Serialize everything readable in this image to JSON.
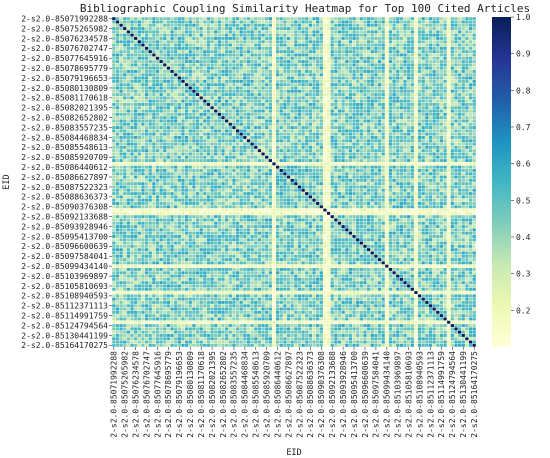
{
  "chart_data": {
    "type": "heatmap",
    "title": "Bibliographic Coupling Similarity Heatmap for Top 100 Cited Articles",
    "xlabel": "EID",
    "ylabel": "EID",
    "n": 100,
    "tick_step": 3,
    "tick_labels": [
      "2-s2.0-85071992288",
      "2-s2.0-85075265982",
      "2-s2.0-85076234578",
      "2-s2.0-85076702747",
      "2-s2.0-85077645916",
      "2-s2.0-85078695779",
      "2-s2.0-85079196653",
      "2-s2.0-85080130809",
      "2-s2.0-85081170618",
      "2-s2.0-85082021395",
      "2-s2.0-85082652802",
      "2-s2.0-85083557235",
      "2-s2.0-85084468834",
      "2-s2.0-85085548613",
      "2-s2.0-85085920709",
      "2-s2.0-85086440612",
      "2-s2.0-85086627897",
      "2-s2.0-85087522323",
      "2-s2.0-85088636373",
      "2-s2.0-85090376308",
      "2-s2.0-85092133688",
      "2-s2.0-85093928946",
      "2-s2.0-85095413700",
      "2-s2.0-85096600639",
      "2-s2.0-85097584041",
      "2-s2.0-85099434140",
      "2-s2.0-85103969897",
      "2-s2.0-85105810693",
      "2-s2.0-85108940593",
      "2-s2.0-85112371113",
      "2-s2.0-85114991759",
      "2-s2.0-85124794564",
      "2-s2.0-85130441199",
      "2-s2.0-85164170275"
    ],
    "value_range": [
      0.1,
      1.0
    ],
    "diagonal_value": 1.0,
    "typical_off_diagonal_range": [
      0.3,
      0.6
    ],
    "light_rows_cols": [
      44,
      58,
      59,
      75,
      83,
      92
    ],
    "colorbar": {
      "colormap": "YlGnBu",
      "ticks": [
        0.2,
        0.3,
        0.4,
        0.5,
        0.6,
        0.7,
        0.8,
        0.9,
        1.0
      ],
      "tick_labels": [
        "0.2",
        "0.3",
        "0.4",
        "0.5",
        "0.6",
        "0.7",
        "0.8",
        "0.9",
        "1.0"
      ]
    }
  }
}
